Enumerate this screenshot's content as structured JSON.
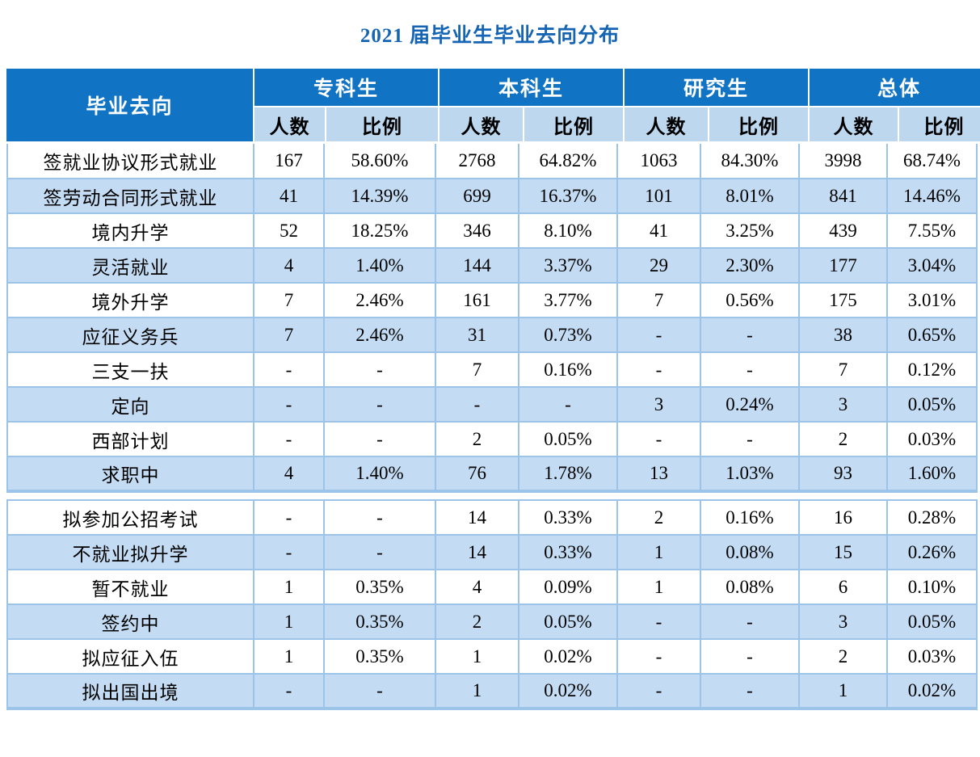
{
  "title": "2021 届毕业生毕业去向分布",
  "colors": {
    "title_color": "#1565B4",
    "header_bg": "#1173C4",
    "header_text": "#FFFFFF",
    "subheader_bg": "#BDD7EE",
    "row_alt_bg": "#C3DCF3",
    "border_color": "#9CC3E8",
    "text_color": "#000000"
  },
  "chart_data": {
    "type": "table",
    "title": "2021 届毕业生毕业去向分布",
    "corner_header": "毕业去向",
    "column_groups": [
      "专科生",
      "本科生",
      "研究生",
      "总体"
    ],
    "sub_columns": {
      "count": "人数",
      "ratio": "比例"
    },
    "columns_flat": [
      "毕业去向",
      "专科生 人数",
      "专科生 比例",
      "本科生 人数",
      "本科生 比例",
      "研究生 人数",
      "研究生 比例",
      "总体 人数",
      "总体 比例"
    ],
    "rows": [
      {
        "label": "签就业协议形式就业",
        "values": [
          "167",
          "58.60%",
          "2768",
          "64.82%",
          "1063",
          "84.30%",
          "3998",
          "68.74%"
        ]
      },
      {
        "label": "签劳动合同形式就业",
        "values": [
          "41",
          "14.39%",
          "699",
          "16.37%",
          "101",
          "8.01%",
          "841",
          "14.46%"
        ]
      },
      {
        "label": "境内升学",
        "values": [
          "52",
          "18.25%",
          "346",
          "8.10%",
          "41",
          "3.25%",
          "439",
          "7.55%"
        ]
      },
      {
        "label": "灵活就业",
        "values": [
          "4",
          "1.40%",
          "144",
          "3.37%",
          "29",
          "2.30%",
          "177",
          "3.04%"
        ]
      },
      {
        "label": "境外升学",
        "values": [
          "7",
          "2.46%",
          "161",
          "3.77%",
          "7",
          "0.56%",
          "175",
          "3.01%"
        ]
      },
      {
        "label": "应征义务兵",
        "values": [
          "7",
          "2.46%",
          "31",
          "0.73%",
          "-",
          "-",
          "38",
          "0.65%"
        ]
      },
      {
        "label": "三支一扶",
        "values": [
          "-",
          "-",
          "7",
          "0.16%",
          "-",
          "-",
          "7",
          "0.12%"
        ]
      },
      {
        "label": "定向",
        "values": [
          "-",
          "-",
          "-",
          "-",
          "3",
          "0.24%",
          "3",
          "0.05%"
        ]
      },
      {
        "label": "西部计划",
        "values": [
          "-",
          "-",
          "2",
          "0.05%",
          "-",
          "-",
          "2",
          "0.03%"
        ]
      },
      {
        "label": "求职中",
        "values": [
          "4",
          "1.40%",
          "76",
          "1.78%",
          "13",
          "1.03%",
          "93",
          "1.60%"
        ]
      },
      {
        "label": "拟参加公招考试",
        "values": [
          "-",
          "-",
          "14",
          "0.33%",
          "2",
          "0.16%",
          "16",
          "0.28%"
        ]
      },
      {
        "label": "不就业拟升学",
        "values": [
          "-",
          "-",
          "14",
          "0.33%",
          "1",
          "0.08%",
          "15",
          "0.26%"
        ]
      },
      {
        "label": "暂不就业",
        "values": [
          "1",
          "0.35%",
          "4",
          "0.09%",
          "1",
          "0.08%",
          "6",
          "0.10%"
        ]
      },
      {
        "label": "签约中",
        "values": [
          "1",
          "0.35%",
          "2",
          "0.05%",
          "-",
          "-",
          "3",
          "0.05%"
        ]
      },
      {
        "label": "拟应征入伍",
        "values": [
          "1",
          "0.35%",
          "1",
          "0.02%",
          "-",
          "-",
          "2",
          "0.03%"
        ]
      },
      {
        "label": "拟出国出境",
        "values": [
          "-",
          "-",
          "1",
          "0.02%",
          "-",
          "-",
          "1",
          "0.02%"
        ]
      }
    ],
    "layout_hints": {
      "section_break_after_row": 10,
      "alternating_row_shading": true,
      "legend_position": "none",
      "grid": true
    }
  }
}
